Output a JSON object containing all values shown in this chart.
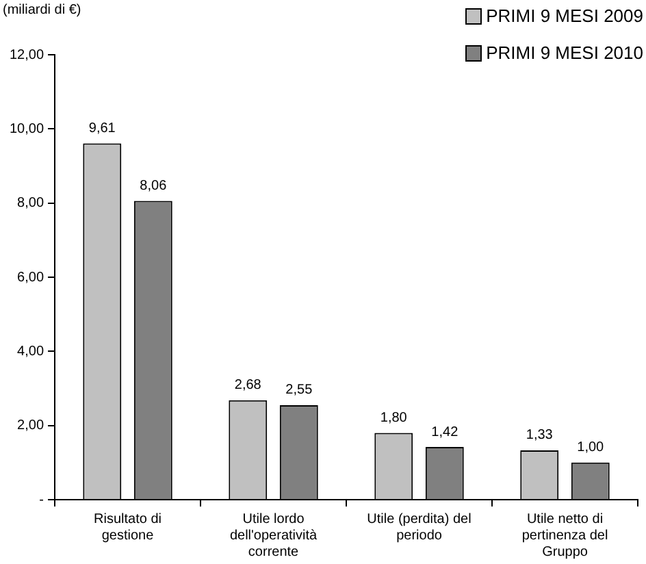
{
  "chart_data": {
    "type": "bar",
    "title": "(miliardi di €)",
    "categories": [
      "Risultato di gestione",
      "Utile lordo dell'operatività corrente",
      "Utile (perdita) del periodo",
      "Utile netto di pertinenza del Gruppo"
    ],
    "series": [
      {
        "name": "PRIMI 9 MESI 2009",
        "color": "#c0c0c0",
        "values": [
          9.61,
          2.68,
          1.8,
          1.33
        ],
        "value_labels": [
          "9,61",
          "2,68",
          "1,80",
          "1,33"
        ]
      },
      {
        "name": "PRIMI 9 MESI 2010",
        "color": "#808080",
        "values": [
          8.06,
          2.55,
          1.42,
          1.0
        ],
        "value_labels": [
          "8,06",
          "2,55",
          "1,42",
          "1,00"
        ]
      }
    ],
    "ylim": [
      0,
      12
    ],
    "yticks": [
      {
        "value": 0,
        "label": "-"
      },
      {
        "value": 2,
        "label": "2,00"
      },
      {
        "value": 4,
        "label": "4,00"
      },
      {
        "value": 6,
        "label": "6,00"
      },
      {
        "value": 8,
        "label": "8,00"
      },
      {
        "value": 10,
        "label": "10,00"
      },
      {
        "value": 12,
        "label": "12,00"
      }
    ],
    "grid": false,
    "legend": "top right"
  }
}
